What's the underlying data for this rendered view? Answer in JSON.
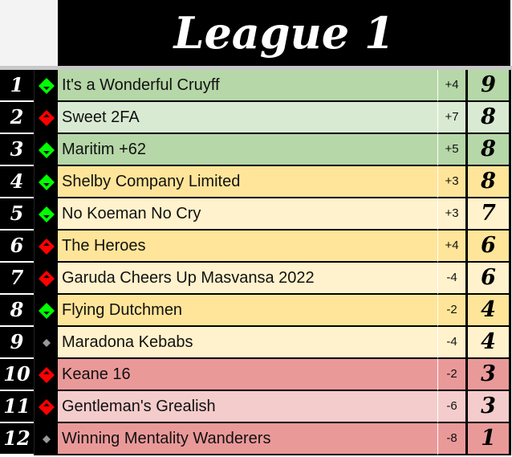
{
  "title": "League 1",
  "colors": {
    "green_dark": "#b6d7a8",
    "green_light": "#d9ead3",
    "yellow_dark": "#ffe599",
    "yellow_light": "#fff2cc",
    "red_dark": "#ea9999",
    "red_light": "#f4cccc",
    "up": "#00ff00",
    "down": "#ff0000",
    "same": "#999999"
  },
  "rows": [
    {
      "rank": "1",
      "trend": "up",
      "team": "It's a Wonderful Cruyff",
      "diff": "+4",
      "points": "9",
      "color": "#b6d7a8"
    },
    {
      "rank": "2",
      "trend": "down",
      "team": "Sweet 2FA",
      "diff": "+7",
      "points": "8",
      "color": "#d9ead3"
    },
    {
      "rank": "3",
      "trend": "up",
      "team": "Maritim +62",
      "diff": "+5",
      "points": "8",
      "color": "#b6d7a8"
    },
    {
      "rank": "4",
      "trend": "up",
      "team": "Shelby Company Limited",
      "diff": "+3",
      "points": "8",
      "color": "#ffe599"
    },
    {
      "rank": "5",
      "trend": "up",
      "team": "No Koeman No Cry",
      "diff": "+3",
      "points": "7",
      "color": "#fff2cc"
    },
    {
      "rank": "6",
      "trend": "down",
      "team": "The Heroes",
      "diff": "+4",
      "points": "6",
      "color": "#ffe599"
    },
    {
      "rank": "7",
      "trend": "down",
      "team": "Garuda Cheers Up Masvansa 2022",
      "diff": "-4",
      "points": "6",
      "color": "#fff2cc"
    },
    {
      "rank": "8",
      "trend": "up",
      "team": "Flying Dutchmen",
      "diff": "-2",
      "points": "4",
      "color": "#ffe599"
    },
    {
      "rank": "9",
      "trend": "same",
      "team": "Maradona Kebabs",
      "diff": "-4",
      "points": "4",
      "color": "#fff2cc"
    },
    {
      "rank": "10",
      "trend": "down",
      "team": "Keane 16",
      "diff": "-2",
      "points": "3",
      "color": "#ea9999"
    },
    {
      "rank": "11",
      "trend": "down",
      "team": "Gentleman's Grealish",
      "diff": "-6",
      "points": "3",
      "color": "#f4cccc"
    },
    {
      "rank": "12",
      "trend": "same",
      "team": "Winning Mentality Wanderers",
      "diff": "-8",
      "points": "1",
      "color": "#ea9999"
    }
  ]
}
